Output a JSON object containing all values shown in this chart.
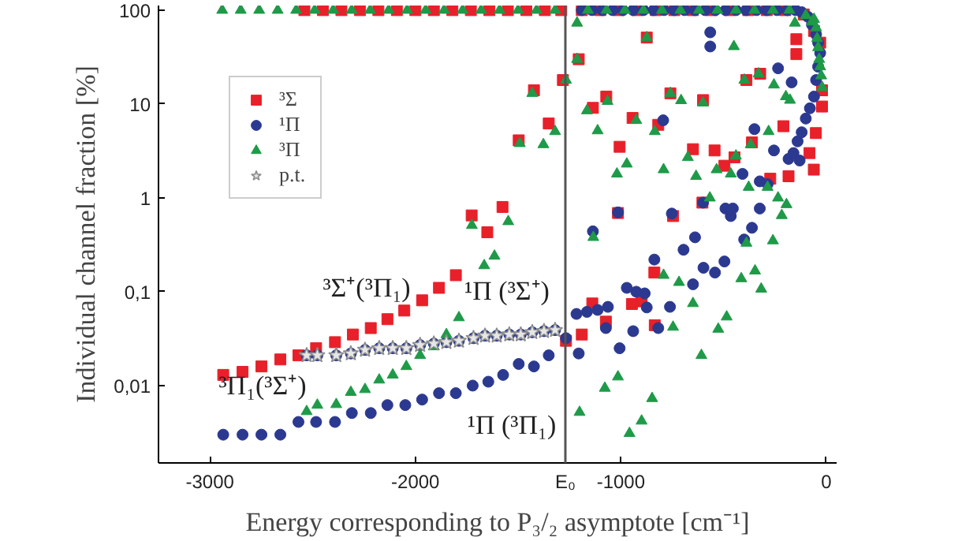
{
  "chart_data": {
    "type": "scatter",
    "xlabel": "Energy corresponding to P₃/₂ asymptote [cm⁻¹]",
    "ylabel": "Individual channel fraction [%]",
    "xlim": [
      -3250,
      50
    ],
    "ylim": [
      0.0015,
      112
    ],
    "log": "y",
    "grid": false,
    "legend": "top left",
    "xticks": [
      -3000,
      -2000,
      {
        "value": -1270,
        "label": "E₀"
      },
      -1000,
      0
    ],
    "yticks": [
      {
        "value": 0.01,
        "label": "0,01"
      },
      {
        "value": 0.1,
        "label": "0,1"
      },
      1,
      10,
      100
    ],
    "ref_lines": [
      {
        "axis": "x",
        "value": -1270,
        "color": "#555555",
        "line_style": "solid"
      }
    ],
    "annotations": [
      "³Σ⁺(³Π₁)",
      "¹Π (³Σ⁺)",
      "³Π₁(³Σ⁺)",
      "¹Π (³Π₁)"
    ],
    "series": [
      {
        "name": "³Σ",
        "color": "#e8202a",
        "marker": "square",
        "x": [
          -2540,
          -2450,
          -2360,
          -2270,
          -2180,
          -2090,
          -2000,
          -1910,
          -1820,
          -1730,
          -1640,
          -1550,
          -1460,
          -1370,
          -1290,
          -1190,
          -1100,
          -1010,
          -920,
          -830,
          -740,
          -650,
          -560,
          -470,
          -380,
          -290,
          -200,
          -110,
          -60,
          -30,
          -2935,
          -2841,
          -2749,
          -2657,
          -2569,
          -2483,
          -2391,
          -2304,
          -2217,
          -2136,
          -2054,
          -1967,
          -1885,
          -1803,
          -1726,
          -1650,
          -1576,
          -1267,
          -1190,
          -1139,
          -1073,
          -946,
          -899,
          -837,
          -835,
          -1423,
          -1205,
          -1282,
          -1351,
          -1497,
          -1071,
          -1136,
          -943,
          -818,
          -1006,
          -759,
          -600,
          -649,
          -544,
          -447,
          -496,
          -389,
          -322,
          -362,
          -209,
          -184,
          -273,
          -61,
          -82,
          -51,
          -21,
          -21,
          -603,
          -1014,
          -746,
          -146,
          -146,
          -874
        ],
        "values": [
          100,
          100,
          100,
          100,
          100,
          100,
          100,
          100,
          100,
          100,
          100,
          100,
          100,
          100,
          100,
          100,
          100,
          100,
          100,
          100,
          100,
          100,
          100,
          100,
          100,
          100,
          100,
          90,
          60,
          45,
          0.013,
          0.014,
          0.016,
          0.019,
          0.021,
          0.025,
          0.029,
          0.035,
          0.041,
          0.051,
          0.063,
          0.081,
          0.11,
          0.15,
          0.65,
          0.43,
          0.8,
          0.03,
          0.035,
          0.075,
          0.048,
          0.074,
          0.079,
          0.16,
          0.044,
          14,
          30,
          18,
          6.2,
          4.1,
          12,
          9.1,
          7.1,
          6,
          3.5,
          13,
          11,
          3.3,
          3.2,
          2.7,
          2.2,
          18,
          21,
          3.9,
          5.8,
          1.7,
          1.6,
          2,
          3,
          4.9,
          9.4,
          14,
          0.89,
          0.69,
          0.64,
          49,
          34,
          51
        ]
      },
      {
        "name": "¹Π",
        "color": "#2b3990",
        "marker": "circle",
        "x": [
          -1190,
          -1140,
          -1090,
          -1040,
          -990,
          -940,
          -890,
          -840,
          -790,
          -740,
          -690,
          -640,
          -590,
          -540,
          -490,
          -440,
          -390,
          -340,
          -290,
          -240,
          -190,
          -150,
          -120,
          -90,
          -70,
          -50,
          -2935,
          -2841,
          -2749,
          -2657,
          -2569,
          -2483,
          -2391,
          -2309,
          -2217,
          -2136,
          -2049,
          -1967,
          -1885,
          -1803,
          -1721,
          -1645,
          -1573,
          -1497,
          -1423,
          -1351,
          -1267,
          -1205,
          -1006,
          -940,
          -1073,
          -2529,
          -2477,
          -2385,
          -2314,
          -2245,
          -2176,
          -2110,
          -2044,
          -1977,
          -1910,
          -1849,
          -1788,
          -1717,
          -1661,
          -1604,
          -1543,
          -1487,
          -1431,
          -1374,
          -1320,
          -1216,
          -1165,
          -1113,
          -1063,
          -971,
          -925,
          -884,
          -874,
          -818,
          -761,
          -649,
          -598,
          -542,
          -496,
          -837,
          -565,
          -565,
          -235,
          -169,
          -794,
          -350,
          -255,
          -184,
          -408,
          -324,
          -286,
          -600,
          -491,
          -465,
          -455,
          -324,
          -362,
          -400,
          -1014,
          -752,
          -1136,
          -639,
          -695,
          -40,
          -30,
          -40,
          -50,
          -60,
          -80,
          -100,
          -120,
          -140,
          -160,
          -130
        ],
        "values": [
          100,
          100,
          100,
          100,
          100,
          100,
          100,
          100,
          100,
          100,
          100,
          100,
          100,
          100,
          100,
          100,
          100,
          100,
          100,
          100,
          100,
          100,
          95,
          85,
          70,
          55,
          0.003,
          0.003,
          0.003,
          0.003,
          0.0041,
          0.0041,
          0.0041,
          0.0051,
          0.0051,
          0.0062,
          0.0062,
          0.0071,
          0.0083,
          0.0083,
          0.01,
          0.011,
          0.013,
          0.017,
          0.016,
          0.021,
          0.032,
          0.022,
          0.025,
          0.038,
          0.041,
          0.021,
          0.021,
          0.021,
          0.022,
          0.024,
          0.025,
          0.025,
          0.025,
          0.027,
          0.028,
          0.029,
          0.03,
          0.032,
          0.034,
          0.034,
          0.035,
          0.035,
          0.037,
          0.038,
          0.039,
          0.058,
          0.061,
          0.064,
          0.069,
          0.11,
          0.1,
          0.096,
          0.068,
          0.041,
          0.069,
          0.12,
          0.18,
          0.16,
          0.21,
          0.22,
          58,
          41,
          24,
          17,
          6.7,
          5.4,
          3.2,
          2.6,
          1.8,
          1.5,
          1.4,
          0.89,
          0.77,
          0.64,
          0.77,
          0.77,
          0.48,
          0.36,
          0.7,
          0.68,
          0.44,
          0.38,
          0.28,
          45,
          35,
          25,
          18,
          12,
          9,
          7,
          5,
          4,
          3,
          2.5
        ]
      },
      {
        "name": "³Π",
        "color": "#1e9a48",
        "marker": "triangle",
        "x": [
          -2940,
          -2850,
          -2760,
          -2670,
          -2580,
          -2490,
          -2400,
          -2310,
          -2220,
          -2130,
          -2040,
          -1950,
          -1860,
          -1770,
          -1680,
          -1590,
          -1500,
          -1410,
          -1320,
          -1160,
          -1070,
          -980,
          -890,
          -800,
          -710,
          -620,
          -530,
          -440,
          -350,
          -260,
          -180,
          -100,
          -70,
          -2529,
          -2477,
          -2385,
          -2314,
          -2245,
          -2176,
          -2110,
          -2044,
          -1977,
          -1910,
          -1849,
          -1788,
          -1725,
          -1665,
          -1615,
          -792,
          -717,
          -649,
          -746,
          -608,
          -526,
          -485,
          -414,
          -347,
          -317,
          -1201,
          -1078,
          -1014,
          -958,
          -899,
          -848,
          -1213,
          -1213,
          -1267,
          -1431,
          -1320,
          -1377,
          -1492,
          -1165,
          -1065,
          -1113,
          -925,
          -835,
          -874,
          -759,
          -707,
          -600,
          -450,
          -1019,
          -971,
          -792,
          -674,
          -634,
          -534,
          -465,
          -399,
          -330,
          -255,
          -197,
          -177,
          -368,
          -281,
          -235,
          -194,
          -217,
          -286,
          -378,
          -567,
          -260,
          -389,
          -440,
          -1548,
          -1134,
          -153,
          -40,
          -35,
          -30,
          -25,
          -20,
          -45,
          -50,
          -60
        ],
        "values": [
          100,
          100,
          100,
          100,
          100,
          100,
          100,
          100,
          100,
          100,
          100,
          100,
          100,
          100,
          100,
          100,
          100,
          100,
          100,
          100,
          100,
          100,
          100,
          100,
          100,
          100,
          100,
          100,
          100,
          100,
          100,
          88,
          75,
          0.0053,
          0.0062,
          0.0063,
          0.0085,
          0.0091,
          0.0115,
          0.013,
          0.016,
          0.021,
          0.026,
          0.035,
          0.053,
          0.51,
          0.19,
          0.24,
          0.15,
          0.126,
          0.075,
          0.042,
          0.021,
          0.04,
          0.054,
          0.138,
          0.167,
          0.107,
          0.0052,
          0.0094,
          0.0124,
          0.0031,
          0.0042,
          0.0073,
          73,
          30,
          18,
          13,
          5.1,
          3.7,
          3.8,
          8.5,
          10.7,
          5.2,
          6.7,
          5.1,
          51,
          13,
          10.9,
          10.3,
          41,
          1.8,
          2.3,
          2,
          2.7,
          1.7,
          2,
          1.8,
          18,
          21,
          16,
          12,
          11,
          3.7,
          5.1,
          1,
          0.85,
          0.65,
          1.3,
          1.3,
          1,
          0.35,
          0.33,
          2.8,
          0.56,
          0.38,
          73,
          40,
          30,
          25,
          20,
          15,
          50,
          65,
          80
        ]
      },
      {
        "name": "p.t.",
        "color": "#e6e6e6",
        "marker": "star",
        "x": [
          -2529,
          -2477,
          -2385,
          -2314,
          -2245,
          -2176,
          -2110,
          -2044,
          -1977,
          -1910,
          -1849,
          -1788,
          -1717,
          -1661,
          -1604,
          -1543,
          -1487,
          -1431,
          -1374,
          -1320
        ],
        "values": [
          0.021,
          0.021,
          0.021,
          0.022,
          0.024,
          0.025,
          0.025,
          0.025,
          0.027,
          0.028,
          0.029,
          0.03,
          0.032,
          0.034,
          0.034,
          0.035,
          0.035,
          0.037,
          0.038,
          0.039
        ]
      }
    ]
  }
}
